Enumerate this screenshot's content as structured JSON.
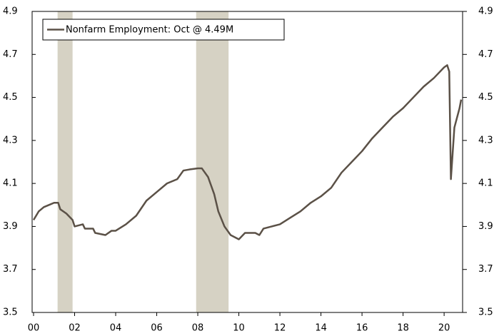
{
  "chart_data": {
    "type": "line",
    "legend_text": "Nonfarm Employment: Oct @ 4.49M",
    "x": [
      2000.0,
      2000.25,
      2000.5,
      2000.75,
      2001.0,
      2001.2,
      2001.3,
      2001.6,
      2001.9,
      2002.0,
      2002.4,
      2002.5,
      2002.9,
      2003.0,
      2003.5,
      2003.8,
      2004.0,
      2004.5,
      2005.0,
      2005.5,
      2006.0,
      2006.5,
      2007.0,
      2007.3,
      2007.6,
      2008.0,
      2008.2,
      2008.5,
      2008.8,
      2009.0,
      2009.3,
      2009.6,
      2010.0,
      2010.3,
      2010.8,
      2011.0,
      2011.2,
      2011.6,
      2012.0,
      2012.5,
      2013.0,
      2013.5,
      2014.0,
      2014.5,
      2015.0,
      2015.5,
      2016.0,
      2016.5,
      2017.0,
      2017.5,
      2018.0,
      2018.5,
      2019.0,
      2019.5,
      2020.0,
      2020.15,
      2020.25,
      2020.33,
      2020.5,
      2020.75,
      2020.83
    ],
    "series": [
      {
        "name": "Nonfarm Employment",
        "color": "#5b5147",
        "values": [
          3.93,
          3.97,
          3.99,
          4.0,
          4.01,
          4.01,
          3.98,
          3.96,
          3.93,
          3.9,
          3.91,
          3.89,
          3.89,
          3.87,
          3.86,
          3.88,
          3.88,
          3.91,
          3.95,
          4.02,
          4.06,
          4.1,
          4.12,
          4.16,
          4.165,
          4.17,
          4.17,
          4.13,
          4.05,
          3.97,
          3.9,
          3.86,
          3.84,
          3.87,
          3.87,
          3.86,
          3.89,
          3.9,
          3.91,
          3.94,
          3.97,
          4.01,
          4.04,
          4.08,
          4.15,
          4.2,
          4.25,
          4.31,
          4.36,
          4.41,
          4.45,
          4.5,
          4.55,
          4.59,
          4.64,
          4.65,
          4.62,
          4.12,
          4.36,
          4.45,
          4.49
        ]
      }
    ],
    "shaded_ranges": [
      [
        2001.17,
        2001.9
      ],
      [
        2007.92,
        2009.5
      ]
    ],
    "shade_color": "#d6d2c4",
    "xlim": [
      1999.93,
      2020.9
    ],
    "xticks": [
      {
        "value": 2000,
        "label": "00"
      },
      {
        "value": 2002,
        "label": "02"
      },
      {
        "value": 2004,
        "label": "04"
      },
      {
        "value": 2006,
        "label": "06"
      },
      {
        "value": 2008,
        "label": "08"
      },
      {
        "value": 2010,
        "label": "10"
      },
      {
        "value": 2012,
        "label": "12"
      },
      {
        "value": 2014,
        "label": "14"
      },
      {
        "value": 2016,
        "label": "16"
      },
      {
        "value": 2018,
        "label": "18"
      },
      {
        "value": 2020,
        "label": "20"
      }
    ],
    "ylim": [
      3.5,
      4.9
    ],
    "yticks": [
      3.5,
      3.7,
      3.9,
      4.1,
      4.3,
      4.5,
      4.7,
      4.9
    ],
    "y2lim": [
      3.5,
      4.9
    ],
    "y2ticks": [
      3.5,
      3.7,
      3.9,
      4.1,
      4.3,
      4.5,
      4.7,
      4.9
    ]
  }
}
